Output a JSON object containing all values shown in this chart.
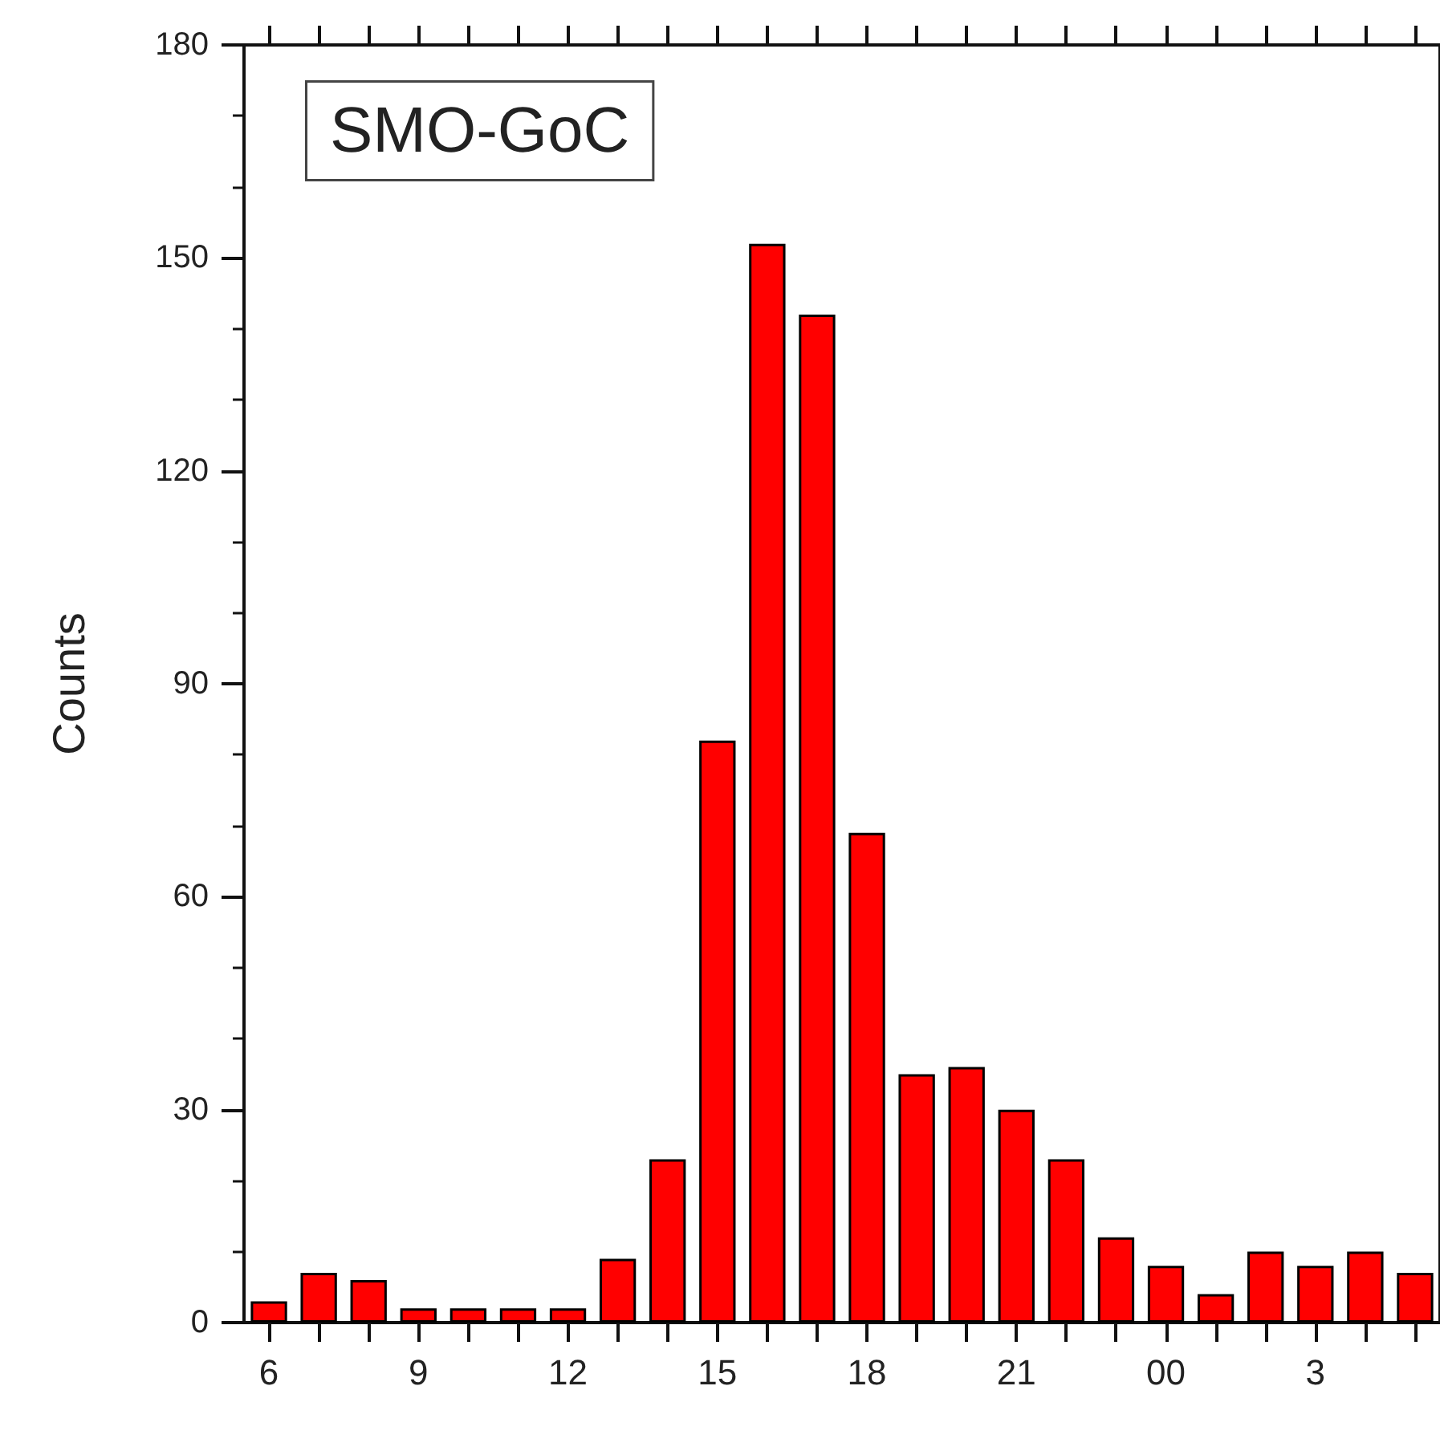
{
  "chart_data": {
    "type": "bar",
    "annotations": [
      "SMO-GoC"
    ],
    "ylabel": "Counts",
    "categories": [
      "6",
      null,
      null,
      "9",
      null,
      null,
      "12",
      null,
      null,
      "15",
      null,
      null,
      "18",
      null,
      null,
      "21",
      null,
      null,
      "00",
      null,
      null,
      "3",
      null,
      null
    ],
    "values": [
      3,
      7,
      6,
      2,
      2,
      2,
      2,
      9,
      23,
      82,
      152,
      142,
      69,
      35,
      36,
      30,
      23,
      12,
      8,
      4,
      10,
      8,
      10,
      7
    ],
    "color": "#ff0000",
    "ylim": [
      0,
      180
    ],
    "yticks": [
      0,
      30,
      60,
      90,
      120,
      150,
      180
    ]
  }
}
